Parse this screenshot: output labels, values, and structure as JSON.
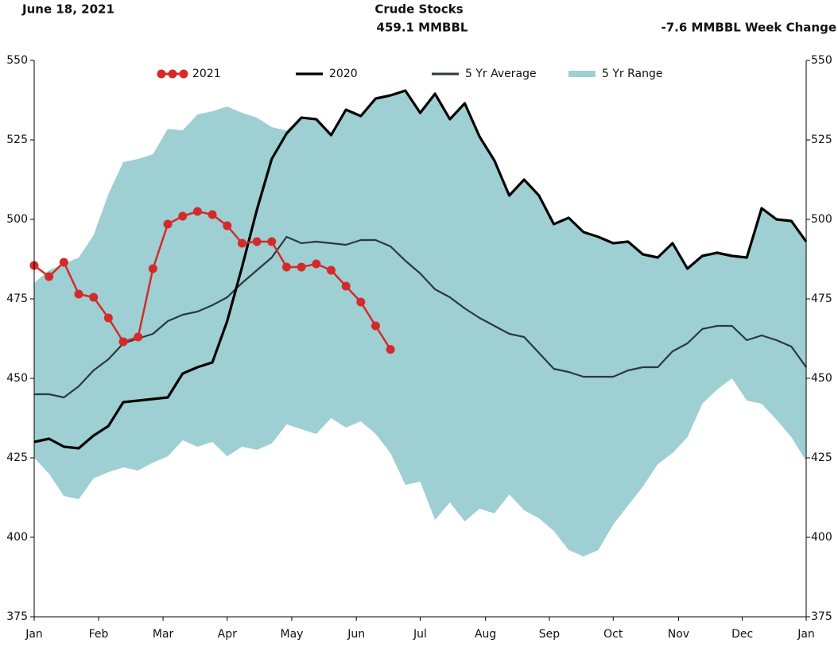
{
  "chart_data": {
    "type": "line",
    "date": "June 18, 2021",
    "title": "Crude Stocks",
    "subtitle": "459.1 MMBBL",
    "annotation": "-7.6 MMBBL Week Change",
    "x": [
      0,
      1,
      2,
      3,
      4,
      5,
      6,
      7,
      8,
      9,
      10,
      11,
      12,
      13,
      14,
      15,
      16,
      17,
      18,
      19,
      20,
      21,
      22,
      23,
      24,
      25,
      26,
      27,
      28,
      29,
      30,
      31,
      32,
      33,
      34,
      35,
      36,
      37,
      38,
      39,
      40,
      41,
      42,
      43,
      44,
      45,
      46,
      47,
      48,
      49,
      50,
      51,
      52
    ],
    "xlim": [
      0,
      52
    ],
    "xticks": [
      {
        "value": 0,
        "label": "Jan"
      },
      {
        "value": 4.34,
        "label": "Feb"
      },
      {
        "value": 8.68,
        "label": "Mar"
      },
      {
        "value": 13.0,
        "label": "Apr"
      },
      {
        "value": 17.35,
        "label": "May"
      },
      {
        "value": 21.7,
        "label": "Jun"
      },
      {
        "value": 26.0,
        "label": "Jul"
      },
      {
        "value": 30.4,
        "label": "Aug"
      },
      {
        "value": 34.7,
        "label": "Sep"
      },
      {
        "value": 39.0,
        "label": "Oct"
      },
      {
        "value": 43.4,
        "label": "Nov"
      },
      {
        "value": 47.7,
        "label": "Dec"
      },
      {
        "value": 52,
        "label": "Jan"
      }
    ],
    "ylim": [
      375,
      550
    ],
    "yticks": [
      375,
      400,
      425,
      450,
      475,
      500,
      525,
      550
    ],
    "y2lim": [
      375,
      550
    ],
    "y2ticks": [
      375,
      400,
      425,
      450,
      475,
      500,
      525,
      550
    ],
    "range": {
      "name": "5 Yr Range",
      "color": "#9ecfd3",
      "high": [
        480,
        484,
        486,
        488,
        495,
        508,
        518,
        519,
        520.5,
        528.5,
        528,
        533,
        534,
        535.5,
        533.5,
        532,
        529,
        528,
        532,
        531.5,
        526.5,
        534.5,
        532.5,
        538,
        539,
        540.5,
        533.5,
        539.5,
        531.5,
        536.5,
        526,
        518.5,
        507.5,
        512.5,
        507.5,
        498.5,
        500.5,
        496,
        494.5,
        492.5,
        493,
        489,
        488,
        492.5,
        484.5,
        488.5,
        490,
        488.5,
        488,
        503.5,
        500,
        499.5,
        493
      ],
      "low": [
        425,
        420,
        413,
        412,
        418.5,
        420.5,
        422,
        421,
        423.5,
        425.5,
        430.5,
        428.5,
        430,
        425.5,
        428.5,
        427.5,
        429.5,
        435.5,
        434,
        432.5,
        437.5,
        434.5,
        436.5,
        432.5,
        426.5,
        416.5,
        417.5,
        405.5,
        411,
        405,
        409,
        407.5,
        413.5,
        408.5,
        406,
        402,
        396,
        394,
        396,
        404,
        410,
        416,
        423,
        426.5,
        431.5,
        442,
        446.5,
        450,
        443,
        442,
        437,
        431.5,
        424
      ]
    },
    "series": [
      {
        "name": "2021",
        "color": "#d42a2a",
        "values": [
          485.5,
          482,
          486.5,
          476.5,
          475.5,
          469,
          461.5,
          463,
          484.5,
          498.5,
          501,
          502.5,
          501.5,
          498,
          492.5,
          493,
          493,
          485,
          485,
          486,
          484,
          479,
          474,
          466.5,
          459.1,
          null,
          null,
          null,
          null,
          null,
          null,
          null,
          null,
          null,
          null,
          null,
          null,
          null,
          null,
          null,
          null,
          null,
          null,
          null,
          null,
          null,
          null,
          null,
          null,
          null,
          null,
          null,
          null
        ]
      },
      {
        "name": "2020",
        "color": "#000000",
        "values": [
          430,
          431,
          428.5,
          428,
          432,
          435,
          442.5,
          443,
          443.5,
          444,
          451.5,
          453.5,
          455,
          468,
          485,
          503,
          519,
          527,
          532,
          531.5,
          526.5,
          534.5,
          532.5,
          538,
          539,
          540.5,
          533.5,
          539.5,
          531.5,
          536.5,
          526,
          518.5,
          507.5,
          512.5,
          507.5,
          498.5,
          500.5,
          496,
          494.5,
          492.5,
          493,
          489,
          488,
          492.5,
          484.5,
          488.5,
          489.5,
          488.5,
          488,
          503.5,
          500,
          499.5,
          493
        ]
      },
      {
        "name": "5 Yr Average",
        "color": "#2a3a3c",
        "values": [
          445,
          445,
          444,
          447.5,
          452.5,
          456,
          461,
          462.5,
          464,
          468,
          470,
          471,
          473,
          475.5,
          480,
          484,
          488,
          494.5,
          492.5,
          493,
          492.5,
          492,
          493.5,
          493.5,
          491.5,
          487,
          483,
          478,
          475.5,
          472,
          469,
          466.5,
          464,
          463,
          458,
          453,
          452,
          450.5,
          450.5,
          450.5,
          452.5,
          453.5,
          453.5,
          458.5,
          461,
          465.5,
          466.5,
          466.5,
          462,
          463.5,
          462,
          460,
          453.5
        ]
      }
    ]
  }
}
